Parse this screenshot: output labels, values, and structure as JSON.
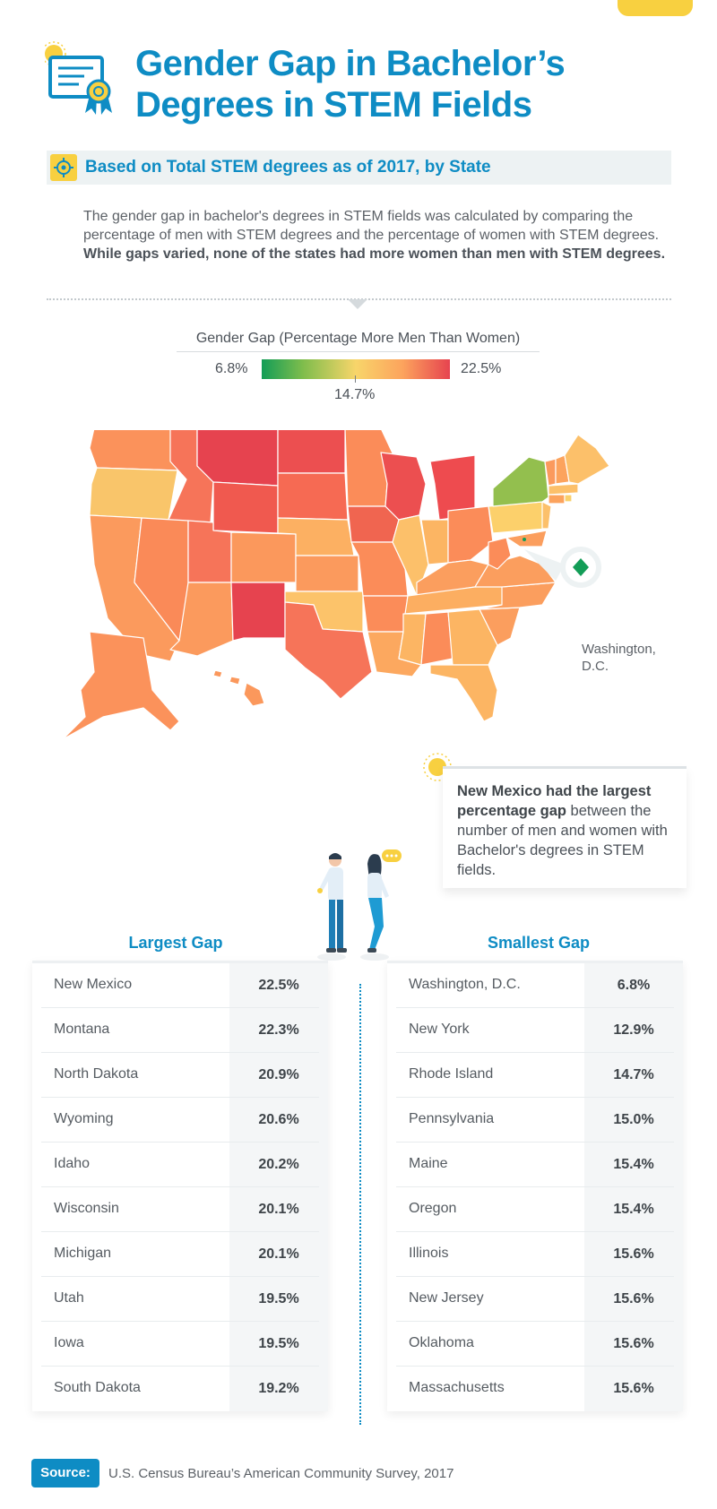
{
  "title_line1": "Gender Gap in Bachelor’s",
  "title_line2": "Degrees in STEM Fields",
  "subtitle": "Based on Total STEM degrees as of 2017, by State",
  "intro": {
    "text": "The gender gap in bachelor's degrees in STEM fields was calculated by comparing the percentage of men with STEM degrees and the percentage of women with STEM degrees. ",
    "bold": "While gaps varied, none of the states had more women than men with STEM degrees."
  },
  "legend": {
    "title": "Gender Gap (Percentage More Men Than Women)",
    "min_label": "6.8%",
    "mid_label": "14.7%",
    "max_label": "22.5%",
    "colors": [
      "#139d57",
      "#7fbd4c",
      "#f8d56a",
      "#fca35d",
      "#e6434f"
    ]
  },
  "map_labels": {
    "dc_line1": "Washington,",
    "dc_line2": "D.C."
  },
  "callout": {
    "bold": "New Mexico had the largest percentage gap",
    "text": " between the number of men and women with Bachelor's degrees in STEM fields."
  },
  "tables": {
    "largest_title": "Largest Gap",
    "smallest_title": "Smallest Gap"
  },
  "source": {
    "label": "Source:",
    "text": "U.S. Census Bureau’s American Community Survey, 2017"
  },
  "chart_data": {
    "type": "table",
    "scale": {
      "min": 6.8,
      "mid": 14.7,
      "max": 22.5,
      "unit": "%"
    },
    "largest_gap": [
      {
        "state": "New Mexico",
        "value": "22.5%"
      },
      {
        "state": "Montana",
        "value": "22.3%"
      },
      {
        "state": "North Dakota",
        "value": "20.9%"
      },
      {
        "state": "Wyoming",
        "value": "20.6%"
      },
      {
        "state": "Idaho",
        "value": "20.2%"
      },
      {
        "state": "Wisconsin",
        "value": "20.1%"
      },
      {
        "state": "Michigan",
        "value": "20.1%"
      },
      {
        "state": "Utah",
        "value": "19.5%"
      },
      {
        "state": "Iowa",
        "value": "19.5%"
      },
      {
        "state": "South Dakota",
        "value": "19.2%"
      }
    ],
    "smallest_gap": [
      {
        "state": "Washington, D.C.",
        "value": "6.8%"
      },
      {
        "state": "New York",
        "value": "12.9%"
      },
      {
        "state": "Rhode Island",
        "value": "14.7%"
      },
      {
        "state": "Pennsylvania",
        "value": "15.0%"
      },
      {
        "state": "Maine",
        "value": "15.4%"
      },
      {
        "state": "Oregon",
        "value": "15.4%"
      },
      {
        "state": "Illinois",
        "value": "15.6%"
      },
      {
        "state": "New Jersey",
        "value": "15.6%"
      },
      {
        "state": "Oklahoma",
        "value": "15.6%"
      },
      {
        "state": "Massachusetts",
        "value": "15.6%"
      }
    ]
  }
}
